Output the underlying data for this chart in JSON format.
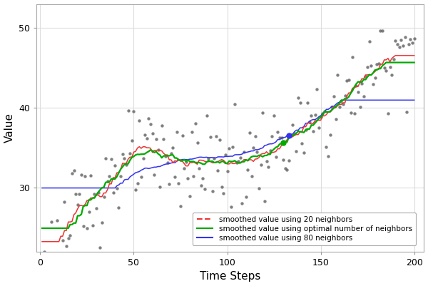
{
  "title": "",
  "xlabel": "Time Steps",
  "ylabel": "Value",
  "xlim": [
    -2,
    205
  ],
  "ylim": [
    22,
    53
  ],
  "xticks": [
    0,
    50,
    100,
    150,
    200
  ],
  "yticks": [
    30,
    40,
    50
  ],
  "scatter_color": "#696969",
  "line_color_20": "#EE3333",
  "line_color_opt": "#00AA00",
  "line_color_80": "#3333EE",
  "legend_labels": [
    "smoothed value using 20 neighbors",
    "smoothed value using optimal number of neighbors",
    "smoothed value using 80 neighbors"
  ],
  "background_color": "#FFFFFF",
  "grid_color": "#DDDDDD",
  "seed": 123,
  "n_points": 200
}
